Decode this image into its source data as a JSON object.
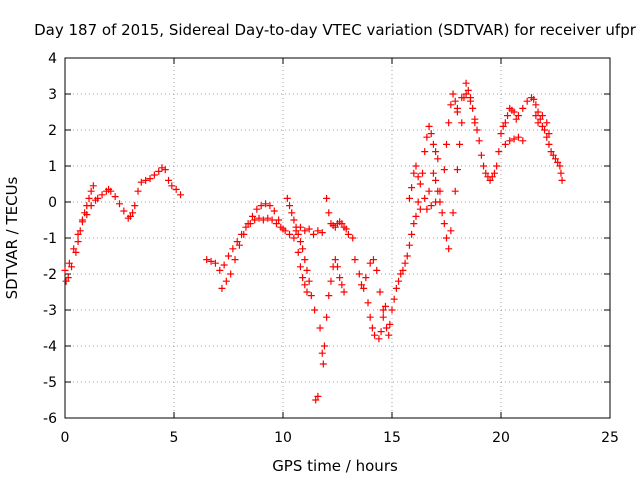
{
  "chart_data": {
    "type": "scatter",
    "title": "Day 187 of 2015, Sidereal Day-to-day VTEC variation (SDTVAR) for receiver ufpr",
    "xlabel": "GPS time / hours",
    "ylabel": "SDTVAR / TECUs",
    "xlim": [
      0,
      25
    ],
    "ylim": [
      -6,
      4
    ],
    "xticks": [
      0,
      5,
      10,
      15,
      20,
      25
    ],
    "yticks": [
      -6,
      -5,
      -4,
      -3,
      -2,
      -1,
      0,
      1,
      2,
      3,
      4
    ],
    "grid": true,
    "legend": "none",
    "marker": "+",
    "colors": {
      "series": "#ff0000",
      "grid": "#a0a0a0",
      "axis": "#000000"
    },
    "series": [
      {
        "name": "SDTVAR",
        "points": [
          [
            0.0,
            -1.9
          ],
          [
            0.05,
            -2.2
          ],
          [
            0.15,
            -2.1
          ],
          [
            0.3,
            -1.8
          ],
          [
            0.5,
            -1.4
          ],
          [
            0.6,
            -1.1
          ],
          [
            0.7,
            -0.8
          ],
          [
            0.8,
            -0.5
          ],
          [
            0.9,
            -0.3
          ],
          [
            1.0,
            -0.1
          ],
          [
            1.1,
            0.1
          ],
          [
            1.2,
            0.3
          ],
          [
            1.3,
            0.45
          ],
          [
            0.2,
            -1.7
          ],
          [
            0.4,
            -1.3
          ],
          [
            0.6,
            -0.9
          ],
          [
            0.8,
            -0.55
          ],
          [
            1.0,
            -0.35
          ],
          [
            1.2,
            -0.1
          ],
          [
            1.4,
            0.05
          ],
          [
            1.5,
            0.1
          ],
          [
            1.7,
            0.2
          ],
          [
            1.9,
            0.3
          ],
          [
            2.0,
            0.35
          ],
          [
            2.1,
            0.3
          ],
          [
            2.3,
            0.15
          ],
          [
            2.5,
            -0.05
          ],
          [
            2.7,
            -0.25
          ],
          [
            2.9,
            -0.45
          ],
          [
            3.0,
            -0.4
          ],
          [
            3.1,
            -0.3
          ],
          [
            3.2,
            -0.1
          ],
          [
            3.35,
            0.3
          ],
          [
            3.5,
            0.55
          ],
          [
            3.7,
            0.6
          ],
          [
            3.9,
            0.65
          ],
          [
            4.1,
            0.75
          ],
          [
            4.3,
            0.85
          ],
          [
            4.45,
            0.95
          ],
          [
            4.6,
            0.9
          ],
          [
            4.75,
            0.6
          ],
          [
            4.9,
            0.45
          ],
          [
            5.1,
            0.35
          ],
          [
            5.3,
            0.2
          ],
          [
            6.5,
            -1.6
          ],
          [
            6.7,
            -1.65
          ],
          [
            6.9,
            -1.7
          ],
          [
            7.1,
            -1.9
          ],
          [
            7.3,
            -1.75
          ],
          [
            7.5,
            -1.5
          ],
          [
            7.7,
            -1.3
          ],
          [
            7.9,
            -1.1
          ],
          [
            8.1,
            -0.9
          ],
          [
            8.3,
            -0.7
          ],
          [
            8.5,
            -0.6
          ],
          [
            8.7,
            -0.5
          ],
          [
            8.9,
            -0.45
          ],
          [
            9.1,
            -0.5
          ],
          [
            9.3,
            -0.45
          ],
          [
            9.5,
            -0.5
          ],
          [
            9.7,
            -0.6
          ],
          [
            9.9,
            -0.7
          ],
          [
            10.1,
            -0.8
          ],
          [
            10.3,
            -0.9
          ],
          [
            10.5,
            -1.0
          ],
          [
            7.2,
            -2.4
          ],
          [
            7.4,
            -2.2
          ],
          [
            7.6,
            -2.0
          ],
          [
            7.8,
            -1.6
          ],
          [
            8.0,
            -1.2
          ],
          [
            8.2,
            -0.9
          ],
          [
            8.4,
            -0.6
          ],
          [
            8.6,
            -0.4
          ],
          [
            8.8,
            -0.2
          ],
          [
            9.0,
            -0.1
          ],
          [
            9.2,
            -0.05
          ],
          [
            9.4,
            -0.1
          ],
          [
            9.6,
            -0.25
          ],
          [
            9.8,
            -0.5
          ],
          [
            10.0,
            -0.75
          ],
          [
            10.2,
            0.1
          ],
          [
            10.3,
            -0.1
          ],
          [
            10.4,
            -0.3
          ],
          [
            10.5,
            -0.5
          ],
          [
            10.6,
            -0.7
          ],
          [
            10.7,
            -0.9
          ],
          [
            10.8,
            -1.1
          ],
          [
            10.9,
            -1.3
          ],
          [
            11.0,
            -1.6
          ],
          [
            11.1,
            -1.9
          ],
          [
            11.2,
            -2.2
          ],
          [
            11.3,
            -2.6
          ],
          [
            11.45,
            -3.0
          ],
          [
            10.7,
            -1.4
          ],
          [
            10.8,
            -1.8
          ],
          [
            10.9,
            -2.1
          ],
          [
            11.0,
            -2.3
          ],
          [
            11.1,
            -2.5
          ],
          [
            10.6,
            -0.8
          ],
          [
            10.8,
            -0.7
          ],
          [
            11.0,
            -0.8
          ],
          [
            11.2,
            -0.75
          ],
          [
            11.4,
            -0.9
          ],
          [
            11.6,
            -0.8
          ],
          [
            11.8,
            -0.85
          ],
          [
            11.5,
            -5.5
          ],
          [
            11.6,
            -5.4
          ],
          [
            11.7,
            -3.5
          ],
          [
            11.8,
            -4.2
          ],
          [
            11.85,
            -4.5
          ],
          [
            11.9,
            -4.0
          ],
          [
            12.0,
            -3.2
          ],
          [
            12.1,
            -2.6
          ],
          [
            12.2,
            -2.2
          ],
          [
            12.3,
            -1.8
          ],
          [
            12.4,
            -1.6
          ],
          [
            12.5,
            -1.8
          ],
          [
            12.6,
            -2.1
          ],
          [
            12.7,
            -2.3
          ],
          [
            12.8,
            -2.5
          ],
          [
            12.0,
            0.1
          ],
          [
            12.1,
            -0.3
          ],
          [
            12.2,
            -0.6
          ],
          [
            12.3,
            -0.65
          ],
          [
            12.4,
            -0.7
          ],
          [
            12.5,
            -0.6
          ],
          [
            12.6,
            -0.55
          ],
          [
            12.7,
            -0.6
          ],
          [
            12.8,
            -0.7
          ],
          [
            12.9,
            -0.75
          ],
          [
            13.0,
            -0.9
          ],
          [
            13.2,
            -1.0
          ],
          [
            13.3,
            -1.6
          ],
          [
            13.5,
            -2.0
          ],
          [
            13.7,
            -2.4
          ],
          [
            13.9,
            -2.8
          ],
          [
            14.0,
            -3.2
          ],
          [
            14.1,
            -3.5
          ],
          [
            14.2,
            -3.7
          ],
          [
            14.4,
            -3.8
          ],
          [
            14.5,
            -3.6
          ],
          [
            14.6,
            -3.2
          ],
          [
            14.7,
            -2.9
          ],
          [
            13.6,
            -2.3
          ],
          [
            13.8,
            -2.1
          ],
          [
            14.0,
            -1.7
          ],
          [
            14.15,
            -1.6
          ],
          [
            14.3,
            -1.9
          ],
          [
            14.45,
            -2.5
          ],
          [
            14.6,
            -3.0
          ],
          [
            14.75,
            -3.5
          ],
          [
            14.85,
            -3.7
          ],
          [
            14.9,
            -3.4
          ],
          [
            15.0,
            -3.0
          ],
          [
            15.1,
            -2.7
          ],
          [
            15.2,
            -2.4
          ],
          [
            15.3,
            -2.2
          ],
          [
            15.4,
            -2.0
          ],
          [
            15.5,
            -1.9
          ],
          [
            15.6,
            -1.7
          ],
          [
            15.7,
            -1.5
          ],
          [
            15.8,
            -1.2
          ],
          [
            15.9,
            -0.9
          ],
          [
            16.0,
            -0.6
          ],
          [
            16.1,
            -0.4
          ],
          [
            16.2,
            0.0
          ],
          [
            15.8,
            0.1
          ],
          [
            15.9,
            0.4
          ],
          [
            16.0,
            0.8
          ],
          [
            16.1,
            1.0
          ],
          [
            16.2,
            0.7
          ],
          [
            16.3,
            0.5
          ],
          [
            16.4,
            0.8
          ],
          [
            16.5,
            1.4
          ],
          [
            16.6,
            1.8
          ],
          [
            16.7,
            2.1
          ],
          [
            16.8,
            1.9
          ],
          [
            16.9,
            1.6
          ],
          [
            17.0,
            1.4
          ],
          [
            17.1,
            1.2
          ],
          [
            16.3,
            -0.2
          ],
          [
            16.5,
            0.1
          ],
          [
            16.7,
            0.3
          ],
          [
            16.9,
            0.8
          ],
          [
            17.0,
            0.6
          ],
          [
            17.1,
            0.3
          ],
          [
            17.2,
            0.0
          ],
          [
            17.3,
            -0.3
          ],
          [
            17.4,
            -0.6
          ],
          [
            17.5,
            -1.0
          ],
          [
            16.6,
            -0.2
          ],
          [
            16.8,
            -0.1
          ],
          [
            17.0,
            0.0
          ],
          [
            17.2,
            0.3
          ],
          [
            17.4,
            0.9
          ],
          [
            17.5,
            1.6
          ],
          [
            17.6,
            2.2
          ],
          [
            17.7,
            2.7
          ],
          [
            17.8,
            3.0
          ],
          [
            17.9,
            2.8
          ],
          [
            18.0,
            2.5
          ],
          [
            17.6,
            -1.3
          ],
          [
            17.7,
            -0.8
          ],
          [
            17.8,
            -0.3
          ],
          [
            17.9,
            0.3
          ],
          [
            18.0,
            0.9
          ],
          [
            18.1,
            1.6
          ],
          [
            18.2,
            2.2
          ],
          [
            18.3,
            2.9
          ],
          [
            18.4,
            3.3
          ],
          [
            18.5,
            3.1
          ],
          [
            18.6,
            2.9
          ],
          [
            18.7,
            2.6
          ],
          [
            18.8,
            2.2
          ],
          [
            18.0,
            2.6
          ],
          [
            18.2,
            2.9
          ],
          [
            18.4,
            3.0
          ],
          [
            18.6,
            2.8
          ],
          [
            18.8,
            2.3
          ],
          [
            18.9,
            2.0
          ],
          [
            19.0,
            1.7
          ],
          [
            19.1,
            1.3
          ],
          [
            19.2,
            1.0
          ],
          [
            19.3,
            0.8
          ],
          [
            19.4,
            0.7
          ],
          [
            19.5,
            0.6
          ],
          [
            19.6,
            0.7
          ],
          [
            19.7,
            0.8
          ],
          [
            19.8,
            1.0
          ],
          [
            19.9,
            1.4
          ],
          [
            20.0,
            1.9
          ],
          [
            20.1,
            2.1
          ],
          [
            20.2,
            2.2
          ],
          [
            20.3,
            2.4
          ],
          [
            20.4,
            2.6
          ],
          [
            20.5,
            2.55
          ],
          [
            20.6,
            2.5
          ],
          [
            20.7,
            2.3
          ],
          [
            20.8,
            2.4
          ],
          [
            21.0,
            2.6
          ],
          [
            21.2,
            2.8
          ],
          [
            21.4,
            2.9
          ],
          [
            21.5,
            2.85
          ],
          [
            21.6,
            2.7
          ],
          [
            20.2,
            1.6
          ],
          [
            20.4,
            1.7
          ],
          [
            20.6,
            1.75
          ],
          [
            20.8,
            1.8
          ],
          [
            21.0,
            1.7
          ],
          [
            21.6,
            2.4
          ],
          [
            21.7,
            2.2
          ],
          [
            21.8,
            2.3
          ],
          [
            21.9,
            2.1
          ],
          [
            22.0,
            2.0
          ],
          [
            22.1,
            1.8
          ],
          [
            22.2,
            1.6
          ],
          [
            22.3,
            1.4
          ],
          [
            22.4,
            1.3
          ],
          [
            22.5,
            1.2
          ],
          [
            22.6,
            1.1
          ],
          [
            22.7,
            1.0
          ],
          [
            22.75,
            0.8
          ],
          [
            22.8,
            0.6
          ],
          [
            21.7,
            2.5
          ],
          [
            21.9,
            2.4
          ],
          [
            22.1,
            2.2
          ],
          [
            22.2,
            1.9
          ]
        ]
      }
    ]
  }
}
